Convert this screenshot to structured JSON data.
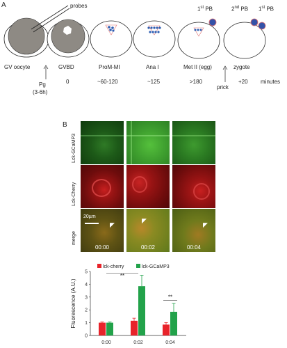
{
  "panel_a": {
    "letter": "A",
    "probes_label": "probes",
    "stages": [
      {
        "name": "GV oocyte",
        "time": ""
      },
      {
        "name": "GVBD",
        "time": "0"
      },
      {
        "name": "ProM-MI",
        "time": "~60-120"
      },
      {
        "name": "Ana I",
        "time": "~125"
      },
      {
        "name": "Met II (egg)",
        "time": ">180"
      },
      {
        "name": "zygote",
        "time": "+20"
      }
    ],
    "minutes_label": "minutes",
    "pg_label": "Pg",
    "pg_time": "(3-6h)",
    "prick_label": "prick",
    "first_pb": {
      "base": "1",
      "sup": "st",
      "rest": " PB"
    },
    "second_pb": {
      "base": "2",
      "sup": "nd",
      "rest": " PB"
    },
    "colors": {
      "oocyte_fill": "#8e8a84",
      "chromosome": "#2f5fb3",
      "polar_body": "#3452a8",
      "spindle": "#e07070"
    }
  },
  "panel_b": {
    "letter": "B",
    "rows": [
      "Lck-GCaMP3",
      "Lck-Cherry",
      "merge"
    ],
    "timestamps": [
      "00:00",
      "00:02",
      "00:04"
    ],
    "scale_bar": "20µm",
    "colors": {
      "green": "#3f9e2f",
      "red": "#a4161a",
      "merge": "#7a6a1e"
    }
  },
  "chart_data": {
    "type": "bar",
    "ylabel": "Fluorescence (A.U.)",
    "categories": [
      "0:00",
      "0:02",
      "0:04"
    ],
    "ylim": [
      0,
      5
    ],
    "yticks": [
      "0",
      "1",
      "2",
      "3",
      "4",
      "5"
    ],
    "series": [
      {
        "name": "lck-cherry",
        "color": "#e8232a",
        "values": [
          1.0,
          1.15,
          0.85
        ],
        "errors": [
          0.05,
          0.2,
          0.15
        ]
      },
      {
        "name": "lck-GCaMP3",
        "color": "#22a24a",
        "values": [
          1.0,
          3.85,
          1.85
        ],
        "errors": [
          0.05,
          0.85,
          0.65
        ]
      }
    ],
    "significance": [
      "**",
      "**"
    ],
    "legend_position": "top"
  }
}
